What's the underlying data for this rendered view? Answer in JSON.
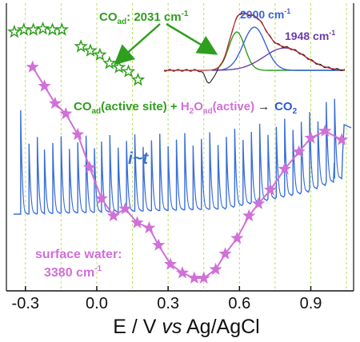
{
  "colors": {
    "co_green": "#2f9e1e",
    "water_violet": "#d070d8",
    "current_blue": "#3a6fd8",
    "deconv_blue": "#3d62d8",
    "deconv_purple": "#6a3ea8",
    "co2_blue": "#2f58d0",
    "black": "#111111",
    "grid_green": "#b8e05a",
    "fit_red": "#c03030"
  },
  "chart_data": {
    "type": "line",
    "xlabel": "E / V vs Ag/AgCl",
    "xlabel_parts": [
      "E / V ",
      "vs",
      " Ag/AgCl"
    ],
    "x_ticks": [
      -0.3,
      0.0,
      0.3,
      0.6,
      0.9
    ],
    "x_tick_labels": [
      "-0.3",
      "0.0",
      "0.3",
      "0.6",
      "0.9"
    ],
    "xlim": [
      -0.38,
      1.08
    ],
    "grid_x": [
      -0.3,
      -0.15,
      0.0,
      0.15,
      0.3,
      0.45,
      0.6,
      0.75,
      0.9,
      1.05
    ],
    "grid": true,
    "series": [
      {
        "name": "surface water: 3380 cm-1",
        "marker": "star",
        "points": [
          [
            -0.27,
            0.91
          ],
          [
            -0.22,
            0.8
          ],
          [
            -0.175,
            0.7
          ],
          [
            -0.13,
            0.64
          ],
          [
            -0.08,
            0.52
          ],
          [
            -0.03,
            0.33
          ],
          [
            0.02,
            0.15
          ],
          [
            0.07,
            0.05
          ],
          [
            0.12,
            0.09
          ],
          [
            0.17,
            0.01
          ],
          [
            0.22,
            -0.02
          ],
          [
            0.26,
            -0.12
          ],
          [
            0.31,
            -0.23
          ],
          [
            0.36,
            -0.28
          ],
          [
            0.41,
            -0.31
          ],
          [
            0.45,
            -0.31
          ],
          [
            0.5,
            -0.26
          ],
          [
            0.54,
            -0.17
          ],
          [
            0.59,
            -0.08
          ],
          [
            0.64,
            0.05
          ],
          [
            0.68,
            0.12
          ],
          [
            0.73,
            0.2
          ],
          [
            0.79,
            0.32
          ],
          [
            0.85,
            0.42
          ],
          [
            0.9,
            0.5
          ],
          [
            0.96,
            0.54
          ],
          [
            1.03,
            0.49
          ]
        ]
      },
      {
        "name": "COad: 2031 cm-1",
        "marker": "hollow-star",
        "points": [
          [
            -0.34,
            0.95
          ],
          [
            -0.3,
            0.96
          ],
          [
            -0.26,
            0.96
          ],
          [
            -0.22,
            0.965
          ],
          [
            -0.18,
            0.96
          ],
          [
            -0.14,
            0.96
          ],
          [
            -0.06,
            0.88
          ],
          [
            -0.02,
            0.86
          ],
          [
            0.02,
            0.84
          ],
          [
            0.06,
            0.8
          ],
          [
            0.1,
            0.78
          ],
          [
            0.14,
            0.76
          ],
          [
            0.18,
            0.72
          ]
        ]
      },
      {
        "name": "i~t",
        "type": "pulsed-current",
        "pulse_x": [
          -0.32,
          -0.285,
          -0.25,
          -0.22,
          -0.185,
          -0.15,
          -0.115,
          -0.08,
          -0.045,
          -0.01,
          0.02,
          0.055,
          0.09,
          0.125,
          0.16,
          0.195,
          0.23,
          0.265,
          0.3,
          0.335,
          0.37,
          0.405,
          0.44,
          0.475,
          0.51,
          0.545,
          0.58,
          0.615,
          0.65,
          0.685,
          0.72,
          0.755,
          0.79,
          0.825,
          0.86,
          0.895,
          0.93,
          0.965,
          1.0
        ]
      }
    ],
    "annotations": {
      "co_label": {
        "main": "CO",
        "sub": "ad",
        "rest": ": 2031 cm",
        "sup": "-1"
      },
      "peak_2000": {
        "main": "2000 cm",
        "sup": "-1"
      },
      "peak_1948": {
        "main": "1948 cm",
        "sup": "-1"
      },
      "reaction": {
        "part1": "CO",
        "part1_sub": "ad",
        "part2": "(active site) + ",
        "part3": "H",
        "part3_sub": "2",
        "part4": "O",
        "part4_sub": "ad",
        "part5": "(active)",
        "arrow": "→",
        "part6": "CO",
        "part6_sub": "2"
      },
      "it_label": "i~t",
      "water_label_line1": "surface water:",
      "water_label_line2_main": "3380 cm",
      "water_label_line2_sup": "-1"
    }
  }
}
